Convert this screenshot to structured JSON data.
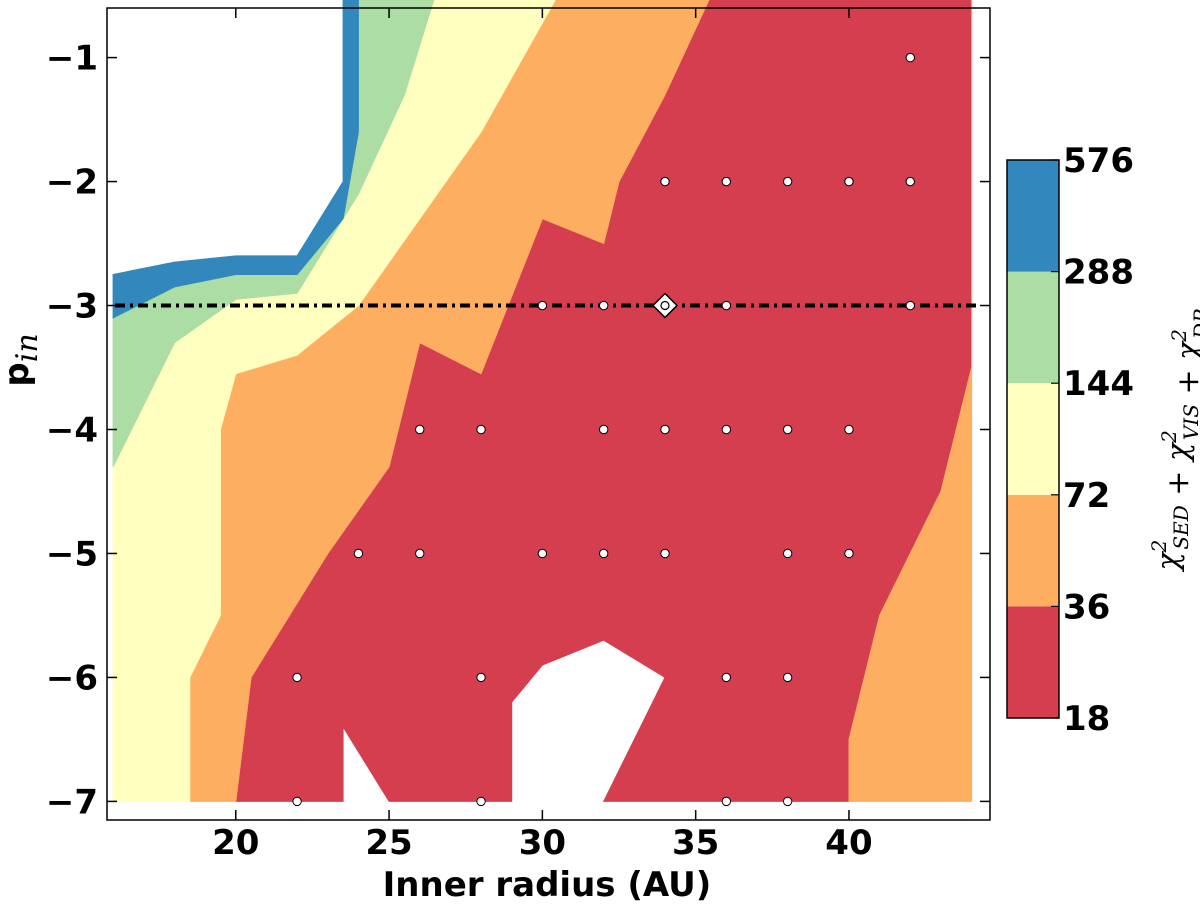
{
  "chart_data": {
    "type": "contour",
    "xlabel": "Inner radius (AU)",
    "ylabel": "p",
    "ylabel_sub": "in",
    "xlim": [
      15.8,
      44.6
    ],
    "ylim": [
      -7.15,
      -0.6
    ],
    "xticks": [
      20,
      25,
      30,
      35,
      40
    ],
    "yticks": [
      -1,
      -2,
      -3,
      -4,
      -5,
      -6,
      -7
    ],
    "tick_labels": {
      "x": [
        "20",
        "25",
        "30",
        "35",
        "40"
      ],
      "y": [
        "−1",
        "−2",
        "−3",
        "−4",
        "−5",
        "−6",
        "−7"
      ]
    },
    "colorbar": {
      "levels": [
        18,
        36,
        72,
        144,
        288,
        576
      ],
      "labels": [
        "18",
        "36",
        "72",
        "144",
        "288",
        "576"
      ],
      "colors": [
        "#d53e4f",
        "#fdae61",
        "#ffffbf",
        "#abdda4",
        "#3288bd"
      ],
      "label_parts": [
        "χ",
        "2",
        "SED",
        " + χ",
        "2",
        "VIS",
        " + χ",
        "2",
        "DP"
      ]
    },
    "reference_line": {
      "y": -3,
      "style": "dash-dot",
      "color": "#000000"
    },
    "best_fit": {
      "x": 34,
      "y": -3
    },
    "regions": [
      {
        "level": "18-36",
        "color": "#d53e4f",
        "polygon": [
          [
            20,
            -7
          ],
          [
            23.5,
            -7
          ],
          [
            23.5,
            -6.4
          ],
          [
            25,
            -7
          ],
          [
            29,
            -7
          ],
          [
            29,
            -6.2
          ],
          [
            30,
            -5.9
          ],
          [
            32,
            -5.7
          ],
          [
            34,
            -6
          ],
          [
            32,
            -7
          ],
          [
            40,
            -7
          ],
          [
            40,
            -6.5
          ],
          [
            41,
            -5.5
          ],
          [
            43,
            -4.5
          ],
          [
            44,
            -3.5
          ],
          [
            44,
            -0.5
          ],
          [
            35.5,
            -0.5
          ],
          [
            34,
            -1.3
          ],
          [
            32.5,
            -2
          ],
          [
            32,
            -2.5
          ],
          [
            30,
            -2.3
          ],
          [
            28,
            -3.55
          ],
          [
            26,
            -3.3
          ],
          [
            25,
            -4.3
          ],
          [
            23,
            -5
          ],
          [
            20.5,
            -6
          ]
        ]
      },
      {
        "level": "36-72",
        "color": "#fdae61",
        "polygon": [
          [
            18.5,
            -7
          ],
          [
            20,
            -7
          ],
          [
            20.5,
            -6
          ],
          [
            23,
            -5
          ],
          [
            25,
            -4.3
          ],
          [
            26,
            -3.3
          ],
          [
            28,
            -3.55
          ],
          [
            30,
            -2.3
          ],
          [
            32,
            -2.5
          ],
          [
            32.5,
            -2
          ],
          [
            34,
            -1.3
          ],
          [
            35.5,
            -0.5
          ],
          [
            44,
            -0.5
          ],
          [
            44,
            -3.5
          ],
          [
            43,
            -4.5
          ],
          [
            41,
            -5.5
          ],
          [
            40,
            -6.5
          ],
          [
            40,
            -7
          ],
          [
            44,
            -7
          ],
          [
            44,
            -0.5
          ],
          [
            30.5,
            -0.5
          ],
          [
            28,
            -1.6
          ],
          [
            24,
            -3
          ],
          [
            22,
            -3.4
          ],
          [
            20,
            -3.55
          ],
          [
            19.5,
            -4
          ],
          [
            19.5,
            -5.5
          ],
          [
            18.5,
            -6
          ]
        ]
      },
      {
        "level": "72-144",
        "color": "#ffffbf",
        "polygon": [
          [
            16,
            -7
          ],
          [
            18.5,
            -7
          ],
          [
            18.5,
            -6
          ],
          [
            19.5,
            -5.5
          ],
          [
            19.5,
            -4
          ],
          [
            20,
            -3.55
          ],
          [
            22,
            -3.4
          ],
          [
            24,
            -3
          ],
          [
            28,
            -1.6
          ],
          [
            30.5,
            -0.5
          ],
          [
            26.5,
            -0.5
          ],
          [
            25.5,
            -1.3
          ],
          [
            24,
            -2.1
          ],
          [
            22,
            -2.9
          ],
          [
            20,
            -2.95
          ],
          [
            18,
            -3.3
          ],
          [
            16,
            -4.3
          ]
        ]
      },
      {
        "level": "144-288",
        "color": "#abdda4",
        "polygon": [
          [
            16,
            -4.3
          ],
          [
            18,
            -3.3
          ],
          [
            20,
            -2.95
          ],
          [
            22,
            -2.9
          ],
          [
            24,
            -2.1
          ],
          [
            25.5,
            -1.3
          ],
          [
            26.5,
            -0.5
          ],
          [
            24,
            -0.5
          ],
          [
            24,
            -1.6
          ],
          [
            23.5,
            -2.3
          ],
          [
            22,
            -2.75
          ],
          [
            20,
            -2.75
          ],
          [
            18,
            -2.85
          ],
          [
            16,
            -3.1
          ]
        ]
      },
      {
        "level": "288-576",
        "color": "#3288bd",
        "polygon": [
          [
            16,
            -3.1
          ],
          [
            18,
            -2.85
          ],
          [
            20,
            -2.75
          ],
          [
            22,
            -2.75
          ],
          [
            23.5,
            -2.3
          ],
          [
            24,
            -1.6
          ],
          [
            24,
            -0.5
          ],
          [
            23.5,
            -0.5
          ],
          [
            23.5,
            -2
          ],
          [
            22,
            -2.6
          ],
          [
            20,
            -2.6
          ],
          [
            18,
            -2.65
          ],
          [
            16,
            -2.75
          ]
        ]
      }
    ],
    "points": [
      [
        42,
        -1
      ],
      [
        34,
        -2
      ],
      [
        36,
        -2
      ],
      [
        38,
        -2
      ],
      [
        40,
        -2
      ],
      [
        42,
        -2
      ],
      [
        30,
        -3
      ],
      [
        32,
        -3
      ],
      [
        36,
        -3
      ],
      [
        42,
        -3
      ],
      [
        26,
        -4
      ],
      [
        28,
        -4
      ],
      [
        32,
        -4
      ],
      [
        34,
        -4
      ],
      [
        36,
        -4
      ],
      [
        38,
        -4
      ],
      [
        40,
        -4
      ],
      [
        24,
        -5
      ],
      [
        26,
        -5
      ],
      [
        30,
        -5
      ],
      [
        32,
        -5
      ],
      [
        34,
        -5
      ],
      [
        38,
        -5
      ],
      [
        40,
        -5
      ],
      [
        22,
        -6
      ],
      [
        28,
        -6
      ],
      [
        36,
        -6
      ],
      [
        38,
        -6
      ],
      [
        22,
        -7
      ],
      [
        28,
        -7
      ],
      [
        36,
        -7
      ],
      [
        38,
        -7
      ]
    ]
  }
}
